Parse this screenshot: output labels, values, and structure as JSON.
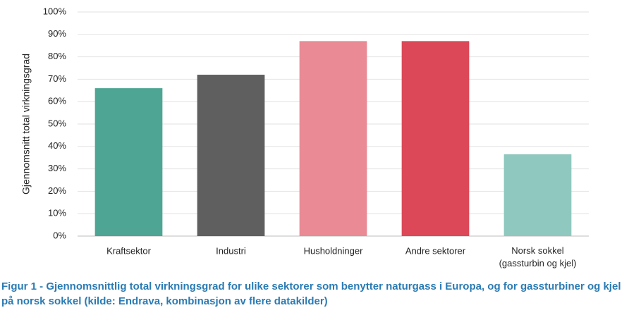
{
  "chart_data": {
    "type": "bar",
    "y_label": "Gjennomsnitt total virkningsgrad",
    "categories": [
      "Kraftsektor",
      "Industri",
      "Husholdninger",
      "Andre sektorer",
      "Norsk sokkel\n(gassturbin og kjel)"
    ],
    "values": [
      66,
      72,
      87,
      87,
      36.5
    ],
    "colors": [
      "#4ea593",
      "#5f5f5f",
      "#e98a95",
      "#dc4857",
      "#8fc8bf"
    ],
    "ylim": [
      0,
      100
    ],
    "yticks": [
      {
        "value": 0,
        "label": "0%"
      },
      {
        "value": 10,
        "label": "10%"
      },
      {
        "value": 20,
        "label": "20%"
      },
      {
        "value": 30,
        "label": "30%"
      },
      {
        "value": 40,
        "label": "40%"
      },
      {
        "value": 50,
        "label": "50%"
      },
      {
        "value": 60,
        "label": "60%"
      },
      {
        "value": 70,
        "label": "70%"
      },
      {
        "value": 80,
        "label": "80%"
      },
      {
        "value": 90,
        "label": "90%"
      },
      {
        "value": 100,
        "label": "100%"
      }
    ],
    "grid": true
  },
  "caption": "Figur 1 - Gjennomsnittlig total virkningsgrad for ulike sektorer som benytter naturgass i Europa, og for gassturbiner og kjel på norsk sokkel (kilde: Endrava, kombinasjon av flere datakilder)"
}
